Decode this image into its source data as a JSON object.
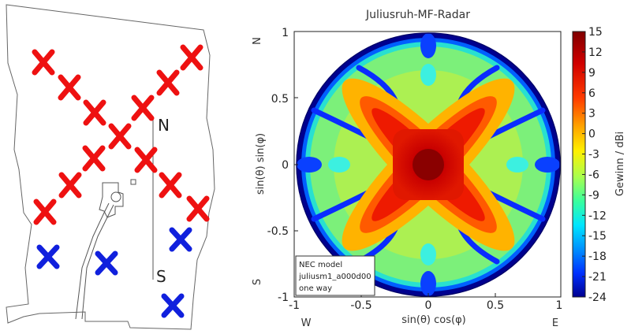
{
  "site_map": {
    "north_label": "N",
    "south_label": "S",
    "colors": {
      "transmit_antenna": "#ee1111",
      "receive_antenna": "#1020dd"
    }
  },
  "radar": {
    "title": "Juliusruh-MF-Radar",
    "x_label": "sin(θ) cos(φ)",
    "y_label": "sin(θ) sin(φ)",
    "x_ticks": [
      "-1",
      "-0.5",
      "0",
      "0.5",
      "1"
    ],
    "y_ticks": [
      "1",
      "0.5",
      "0",
      "-0.5",
      "-1"
    ],
    "compass": {
      "north": "N",
      "south": "S",
      "west": "W",
      "east": "E"
    },
    "model_note": {
      "line1": "NEC model",
      "line2": "juliusm1_a000d00",
      "line3": "one way"
    },
    "colorbar": {
      "label": "Gewinn / dBi",
      "ticks": [
        "15",
        "12",
        "9",
        "6",
        "3",
        "0",
        "-3",
        "-6",
        "-9",
        "-12",
        "-15",
        "-18",
        "-21",
        "-24"
      ],
      "range": [
        -24,
        15
      ]
    }
  }
}
